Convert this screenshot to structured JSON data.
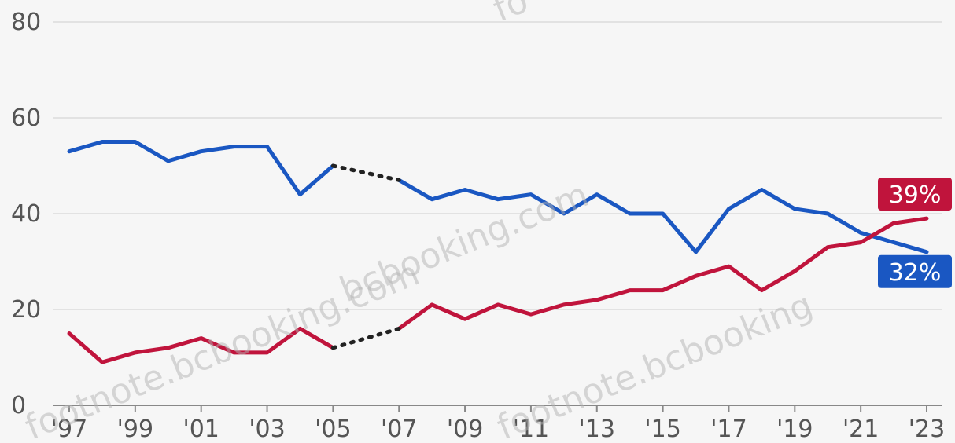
{
  "chart_data": {
    "type": "line",
    "x": [
      1997,
      1998,
      1999,
      2000,
      2001,
      2002,
      2003,
      2004,
      2005,
      2006,
      2007,
      2008,
      2009,
      2010,
      2011,
      2012,
      2013,
      2014,
      2015,
      2016,
      2017,
      2018,
      2019,
      2020,
      2021,
      2022,
      2023
    ],
    "x_tick_labels": [
      "'97",
      "'99",
      "'01",
      "'03",
      "'05",
      "'07",
      "'09",
      "'11",
      "'13",
      "'15",
      "'17",
      "'19",
      "'21",
      "'23"
    ],
    "x_tick_values": [
      1997,
      1999,
      2001,
      2003,
      2005,
      2007,
      2009,
      2011,
      2013,
      2015,
      2017,
      2019,
      2021,
      2023
    ],
    "y_tick_labels": [
      "0",
      "20",
      "40",
      "60",
      "80"
    ],
    "y_tick_values": [
      0,
      20,
      40,
      60,
      80
    ],
    "ylim": [
      0,
      80
    ],
    "xlim": [
      1997,
      2023
    ],
    "grid": true,
    "gap": {
      "from": 2005,
      "to": 2007,
      "style": "dotted"
    },
    "series": [
      {
        "color": "#1a57c2",
        "end_label": "32%",
        "values": [
          53,
          55,
          55,
          51,
          53,
          54,
          54,
          44,
          50,
          null,
          47,
          43,
          45,
          43,
          44,
          40,
          44,
          40,
          40,
          32,
          41,
          45,
          41,
          40,
          36,
          34,
          32
        ]
      },
      {
        "color": "#c0143c",
        "end_label": "39%",
        "values": [
          15,
          9,
          11,
          12,
          14,
          11,
          11,
          16,
          12,
          null,
          16,
          21,
          18,
          21,
          19,
          21,
          22,
          24,
          24,
          27,
          29,
          24,
          28,
          33,
          34,
          38,
          39
        ]
      }
    ]
  },
  "watermarks": [
    "footnote.bcbooking.com",
    "bcbooking.com",
    "footnote.bcbooking",
    "fo"
  ]
}
